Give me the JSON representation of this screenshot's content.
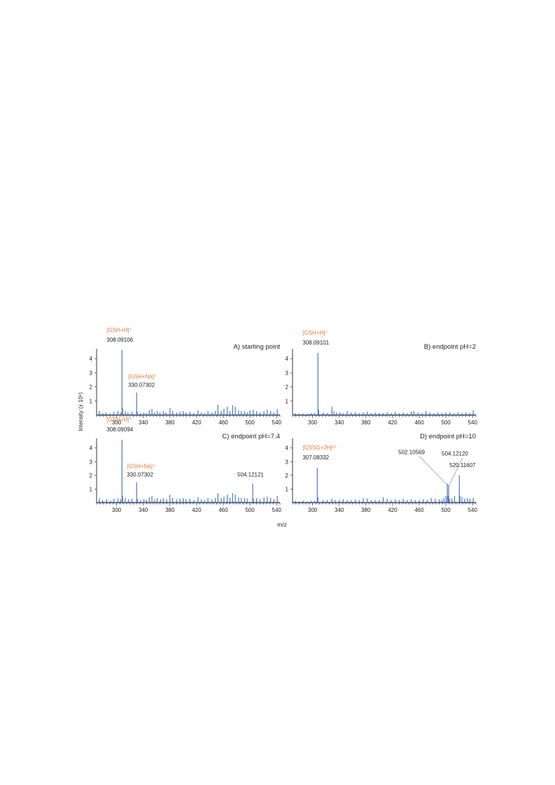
{
  "figure": {
    "ylabel": "Intensity (x 10⁶)",
    "xlabel": "m/z"
  },
  "colors": {
    "spectrum": "#4a78c8",
    "ion_label": "#e07b39",
    "text": "#222222",
    "axis": "#333333"
  },
  "chart_data": [
    {
      "type": "line",
      "title": "A) starting point",
      "xlim": [
        270,
        545
      ],
      "ylim": [
        0,
        4.6
      ],
      "xticks": [
        300,
        340,
        380,
        420,
        460,
        500,
        540
      ],
      "yticks": [
        1,
        2,
        3,
        4
      ],
      "peaks": [
        [
          274,
          0.3
        ],
        [
          279,
          0.15
        ],
        [
          284,
          0.2
        ],
        [
          290,
          0.12
        ],
        [
          296,
          0.25
        ],
        [
          302,
          0.3
        ],
        [
          306.5,
          0.2
        ],
        [
          308.09,
          4.6
        ],
        [
          309.1,
          0.5
        ],
        [
          313,
          0.3
        ],
        [
          317,
          0.2
        ],
        [
          323,
          0.25
        ],
        [
          330.07,
          1.6
        ],
        [
          331.1,
          0.25
        ],
        [
          336,
          0.15
        ],
        [
          341,
          0.2
        ],
        [
          345,
          0.15
        ],
        [
          349,
          0.35
        ],
        [
          353,
          0.45
        ],
        [
          357,
          0.2
        ],
        [
          361,
          0.3
        ],
        [
          365,
          0.2
        ],
        [
          370,
          0.3
        ],
        [
          374,
          0.2
        ],
        [
          380,
          0.5
        ],
        [
          384,
          0.3
        ],
        [
          390,
          0.2
        ],
        [
          395,
          0.25
        ],
        [
          400,
          0.3
        ],
        [
          404,
          0.2
        ],
        [
          410,
          0.25
        ],
        [
          416,
          0.15
        ],
        [
          422,
          0.35
        ],
        [
          427,
          0.2
        ],
        [
          432,
          0.15
        ],
        [
          437,
          0.3
        ],
        [
          443,
          0.2
        ],
        [
          448,
          0.3
        ],
        [
          452,
          0.75
        ],
        [
          457,
          0.3
        ],
        [
          461,
          0.45
        ],
        [
          466,
          0.6
        ],
        [
          470,
          0.3
        ],
        [
          474,
          0.7
        ],
        [
          478,
          0.6
        ],
        [
          483,
          0.35
        ],
        [
          487,
          0.3
        ],
        [
          492,
          0.3
        ],
        [
          496,
          0.2
        ],
        [
          500,
          0.35
        ],
        [
          505,
          0.4
        ],
        [
          510,
          0.3
        ],
        [
          515,
          0.2
        ],
        [
          521,
          0.3
        ],
        [
          526,
          0.4
        ],
        [
          531,
          0.3
        ],
        [
          536,
          0.2
        ],
        [
          541,
          0.45
        ]
      ],
      "annotations": [
        {
          "ion": "[GSH+H]⁺",
          "mz": "308.09106",
          "x": 308.09,
          "y": 4.6
        },
        {
          "ion": "[GSH+Na]⁺",
          "mz": "330.07302",
          "x": 330.07,
          "y": 1.6
        }
      ]
    },
    {
      "type": "line",
      "title": "B) endpoint pH=2",
      "xlim": [
        270,
        545
      ],
      "ylim": [
        0,
        4.6
      ],
      "xticks": [
        300,
        340,
        380,
        420,
        460,
        500,
        540
      ],
      "yticks": [
        1,
        2,
        3,
        4
      ],
      "peaks": [
        [
          274,
          0.15
        ],
        [
          280,
          0.1
        ],
        [
          286,
          0.12
        ],
        [
          292,
          0.1
        ],
        [
          298,
          0.15
        ],
        [
          303,
          0.15
        ],
        [
          308.09,
          4.4
        ],
        [
          309.1,
          0.4
        ],
        [
          316,
          0.2
        ],
        [
          322,
          0.15
        ],
        [
          329,
          0.6
        ],
        [
          332,
          0.3
        ],
        [
          336,
          0.2
        ],
        [
          341,
          0.2
        ],
        [
          346,
          0.15
        ],
        [
          352,
          0.3
        ],
        [
          358,
          0.2
        ],
        [
          364,
          0.2
        ],
        [
          370,
          0.15
        ],
        [
          376,
          0.2
        ],
        [
          382,
          0.25
        ],
        [
          388,
          0.15
        ],
        [
          394,
          0.2
        ],
        [
          400,
          0.15
        ],
        [
          406,
          0.15
        ],
        [
          412,
          0.2
        ],
        [
          418,
          0.15
        ],
        [
          424,
          0.25
        ],
        [
          430,
          0.15
        ],
        [
          436,
          0.2
        ],
        [
          442,
          0.15
        ],
        [
          448,
          0.25
        ],
        [
          452,
          0.3
        ],
        [
          458,
          0.2
        ],
        [
          464,
          0.15
        ],
        [
          470,
          0.3
        ],
        [
          476,
          0.2
        ],
        [
          482,
          0.15
        ],
        [
          488,
          0.2
        ],
        [
          494,
          0.15
        ],
        [
          500,
          0.2
        ],
        [
          506,
          0.2
        ],
        [
          512,
          0.15
        ],
        [
          518,
          0.2
        ],
        [
          524,
          0.15
        ],
        [
          530,
          0.2
        ],
        [
          536,
          0.15
        ],
        [
          541,
          0.35
        ]
      ],
      "annotations": [
        {
          "ion": "[GSH+H]⁺",
          "mz": "308.09101",
          "x": 308.09,
          "y": 4.4
        }
      ]
    },
    {
      "type": "line",
      "title": "C) endpoint pH=7.4",
      "xlim": [
        270,
        545
      ],
      "ylim": [
        0,
        4.6
      ],
      "xticks": [
        300,
        340,
        380,
        420,
        460,
        500,
        540
      ],
      "yticks": [
        1,
        2,
        3,
        4
      ],
      "peaks": [
        [
          274,
          0.3
        ],
        [
          279,
          0.2
        ],
        [
          285,
          0.25
        ],
        [
          291,
          0.15
        ],
        [
          296,
          0.3
        ],
        [
          302,
          0.3
        ],
        [
          306,
          0.25
        ],
        [
          308.09,
          4.6
        ],
        [
          309.1,
          0.5
        ],
        [
          313,
          0.35
        ],
        [
          318,
          0.25
        ],
        [
          323,
          0.3
        ],
        [
          330.07,
          1.5
        ],
        [
          331.1,
          0.3
        ],
        [
          336,
          0.2
        ],
        [
          341,
          0.25
        ],
        [
          345,
          0.2
        ],
        [
          349,
          0.4
        ],
        [
          353,
          0.5
        ],
        [
          357,
          0.25
        ],
        [
          361,
          0.35
        ],
        [
          366,
          0.25
        ],
        [
          370,
          0.35
        ],
        [
          375,
          0.25
        ],
        [
          380,
          0.6
        ],
        [
          384,
          0.35
        ],
        [
          390,
          0.25
        ],
        [
          395,
          0.3
        ],
        [
          400,
          0.35
        ],
        [
          404,
          0.25
        ],
        [
          410,
          0.3
        ],
        [
          416,
          0.2
        ],
        [
          422,
          0.4
        ],
        [
          427,
          0.25
        ],
        [
          432,
          0.2
        ],
        [
          437,
          0.35
        ],
        [
          443,
          0.25
        ],
        [
          448,
          0.35
        ],
        [
          452,
          0.7
        ],
        [
          457,
          0.35
        ],
        [
          461,
          0.45
        ],
        [
          466,
          0.6
        ],
        [
          470,
          0.35
        ],
        [
          474,
          0.7
        ],
        [
          478,
          0.6
        ],
        [
          483,
          0.4
        ],
        [
          487,
          0.35
        ],
        [
          492,
          0.35
        ],
        [
          496,
          0.3
        ],
        [
          504.12,
          1.4
        ],
        [
          505.1,
          0.3
        ],
        [
          510,
          0.35
        ],
        [
          515,
          0.25
        ],
        [
          521,
          0.4
        ],
        [
          526,
          0.45
        ],
        [
          531,
          0.35
        ],
        [
          536,
          0.25
        ],
        [
          541,
          0.5
        ]
      ],
      "annotations": [
        {
          "ion": "[GSH+H]⁺",
          "mz": "308.09094",
          "x": 308.09,
          "y": 4.6
        },
        {
          "ion": "[GSH+Na]⁺",
          "mz": "330.07302",
          "x": 330.07,
          "y": 1.5
        },
        {
          "ion": "",
          "mz": "504.12121",
          "x": 504.12,
          "y": 1.4
        }
      ]
    },
    {
      "type": "line",
      "title": "D) endpoint pH=10",
      "xlim": [
        270,
        545
      ],
      "ylim": [
        0,
        4.6
      ],
      "xticks": [
        300,
        340,
        380,
        420,
        460,
        500,
        540
      ],
      "yticks": [
        1,
        2,
        3,
        4
      ],
      "peaks": [
        [
          274,
          0.15
        ],
        [
          280,
          0.1
        ],
        [
          286,
          0.15
        ],
        [
          292,
          0.1
        ],
        [
          298,
          0.15
        ],
        [
          303,
          0.15
        ],
        [
          307.08,
          2.55
        ],
        [
          308.1,
          0.4
        ],
        [
          316,
          0.2
        ],
        [
          322,
          0.2
        ],
        [
          329,
          0.3
        ],
        [
          334,
          0.2
        ],
        [
          340,
          0.2
        ],
        [
          346,
          0.25
        ],
        [
          352,
          0.2
        ],
        [
          358,
          0.2
        ],
        [
          364,
          0.25
        ],
        [
          370,
          0.2
        ],
        [
          376,
          0.35
        ],
        [
          382,
          0.3
        ],
        [
          388,
          0.2
        ],
        [
          394,
          0.2
        ],
        [
          400,
          0.2
        ],
        [
          406,
          0.4
        ],
        [
          412,
          0.3
        ],
        [
          418,
          0.2
        ],
        [
          424,
          0.25
        ],
        [
          430,
          0.2
        ],
        [
          436,
          0.3
        ],
        [
          442,
          0.2
        ],
        [
          448,
          0.25
        ],
        [
          454,
          0.2
        ],
        [
          460,
          0.2
        ],
        [
          466,
          0.25
        ],
        [
          472,
          0.2
        ],
        [
          478,
          0.35
        ],
        [
          484,
          0.3
        ],
        [
          490,
          0.25
        ],
        [
          494,
          0.2
        ],
        [
          497,
          0.35
        ],
        [
          500,
          0.5
        ],
        [
          502.11,
          1.4
        ],
        [
          503.1,
          0.5
        ],
        [
          504.12,
          1.3
        ],
        [
          505.1,
          0.3
        ],
        [
          509,
          0.3
        ],
        [
          513,
          0.5
        ],
        [
          520.12,
          2.0
        ],
        [
          521.1,
          0.5
        ],
        [
          524,
          0.4
        ],
        [
          528,
          0.3
        ],
        [
          532,
          0.35
        ],
        [
          536,
          0.3
        ],
        [
          541,
          0.35
        ]
      ],
      "annotations": [
        {
          "ion": "[GSSG+2H]²⁺",
          "mz": "307.08332",
          "x": 307.08,
          "y": 2.55
        },
        {
          "ion": "",
          "mz": "502.10569",
          "x": 502.11,
          "y": 1.4
        },
        {
          "ion": "",
          "mz": "504.12120",
          "x": 504.12,
          "y": 1.3
        },
        {
          "ion": "",
          "mz": "520.11607",
          "x": 520.12,
          "y": 2.0
        }
      ]
    }
  ]
}
